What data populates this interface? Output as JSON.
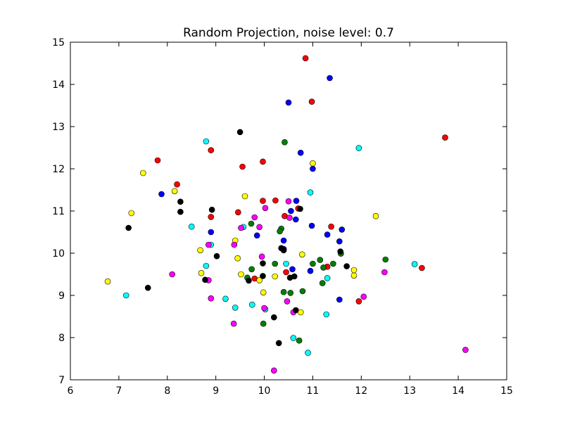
{
  "chart_data": {
    "type": "scatter",
    "title": "Random Projection, noise level: 0.7",
    "xlabel": "",
    "ylabel": "",
    "xlim": [
      6,
      15
    ],
    "ylim": [
      7,
      15
    ],
    "xticks": [
      "6",
      "7",
      "8",
      "9",
      "10",
      "11",
      "12",
      "13",
      "14",
      "15"
    ],
    "yticks": [
      "7",
      "8",
      "9",
      "10",
      "11",
      "12",
      "13",
      "14",
      "15"
    ],
    "grid": false,
    "legend": "none",
    "series": [
      {
        "color": "#0000ff",
        "points": [
          [
            11.35,
            14.15
          ],
          [
            10.5,
            13.57
          ],
          [
            10.75,
            12.38
          ],
          [
            11.0,
            12.0
          ],
          [
            7.88,
            11.4
          ],
          [
            10.66,
            11.24
          ],
          [
            10.65,
            10.8
          ],
          [
            10.98,
            10.65
          ],
          [
            11.6,
            10.56
          ],
          [
            8.9,
            10.5
          ],
          [
            11.3,
            10.44
          ],
          [
            9.85,
            10.42
          ],
          [
            10.4,
            10.3
          ],
          [
            11.55,
            10.28
          ],
          [
            10.4,
            10.1
          ],
          [
            10.58,
            9.62
          ],
          [
            10.95,
            9.58
          ],
          [
            11.55,
            8.9
          ],
          [
            10.55,
            11.0
          ]
        ]
      },
      {
        "color": "#ff0000",
        "points": [
          [
            10.85,
            14.62
          ],
          [
            10.98,
            13.59
          ],
          [
            13.73,
            12.74
          ],
          [
            8.9,
            12.44
          ],
          [
            7.8,
            12.2
          ],
          [
            9.97,
            12.17
          ],
          [
            9.55,
            12.05
          ],
          [
            8.2,
            11.63
          ],
          [
            9.97,
            11.24
          ],
          [
            10.23,
            11.25
          ],
          [
            10.7,
            11.06
          ],
          [
            9.46,
            10.97
          ],
          [
            8.9,
            10.86
          ],
          [
            10.42,
            10.88
          ],
          [
            11.38,
            10.63
          ],
          [
            13.25,
            9.65
          ],
          [
            11.3,
            9.68
          ],
          [
            10.45,
            9.55
          ],
          [
            9.8,
            9.4
          ],
          [
            11.95,
            8.86
          ]
        ]
      },
      {
        "color": "#00ffff",
        "points": [
          [
            8.8,
            12.65
          ],
          [
            11.95,
            12.49
          ],
          [
            10.95,
            11.44
          ],
          [
            8.5,
            10.63
          ],
          [
            9.57,
            10.62
          ],
          [
            8.9,
            10.2
          ],
          [
            10.45,
            9.75
          ],
          [
            13.1,
            9.74
          ],
          [
            8.8,
            9.7
          ],
          [
            11.3,
            9.41
          ],
          [
            7.15,
            9.0
          ],
          [
            9.2,
            8.92
          ],
          [
            9.75,
            8.78
          ],
          [
            9.4,
            8.71
          ],
          [
            10.02,
            8.67
          ],
          [
            11.28,
            8.55
          ],
          [
            10.6,
            7.99
          ],
          [
            10.9,
            7.64
          ]
        ]
      },
      {
        "color": "#ffff00",
        "points": [
          [
            7.5,
            11.9
          ],
          [
            11.0,
            12.13
          ],
          [
            8.15,
            11.47
          ],
          [
            9.6,
            11.35
          ],
          [
            7.26,
            10.95
          ],
          [
            12.3,
            10.88
          ],
          [
            9.4,
            10.3
          ],
          [
            8.68,
            10.07
          ],
          [
            10.78,
            9.97
          ],
          [
            9.45,
            9.88
          ],
          [
            11.85,
            9.6
          ],
          [
            8.7,
            9.53
          ],
          [
            9.52,
            9.5
          ],
          [
            11.85,
            9.47
          ],
          [
            10.22,
            9.45
          ],
          [
            9.9,
            9.36
          ],
          [
            6.77,
            9.33
          ],
          [
            9.98,
            9.07
          ],
          [
            10.75,
            8.6
          ]
        ]
      },
      {
        "color": "#ff00ff",
        "points": [
          [
            10.5,
            11.23
          ],
          [
            10.02,
            11.07
          ],
          [
            9.8,
            10.85
          ],
          [
            10.52,
            10.84
          ],
          [
            9.9,
            10.62
          ],
          [
            9.52,
            10.6
          ],
          [
            8.85,
            10.2
          ],
          [
            9.38,
            10.2
          ],
          [
            9.95,
            9.92
          ],
          [
            8.1,
            9.5
          ],
          [
            12.48,
            9.55
          ],
          [
            8.85,
            9.36
          ],
          [
            12.05,
            8.97
          ],
          [
            8.9,
            8.93
          ],
          [
            10.47,
            8.86
          ],
          [
            10.0,
            8.7
          ],
          [
            10.6,
            8.6
          ],
          [
            9.37,
            8.33
          ],
          [
            14.15,
            7.71
          ],
          [
            10.2,
            7.22
          ]
        ]
      },
      {
        "color": "#008000",
        "points": [
          [
            10.42,
            12.63
          ],
          [
            9.73,
            10.7
          ],
          [
            10.35,
            10.58
          ],
          [
            10.32,
            10.52
          ],
          [
            11.58,
            9.99
          ],
          [
            11.15,
            9.84
          ],
          [
            12.5,
            9.85
          ],
          [
            11.0,
            9.75
          ],
          [
            10.22,
            9.75
          ],
          [
            11.42,
            9.75
          ],
          [
            11.22,
            9.66
          ],
          [
            9.74,
            9.62
          ],
          [
            9.65,
            9.42
          ],
          [
            11.2,
            9.29
          ],
          [
            10.4,
            9.08
          ],
          [
            10.54,
            9.06
          ],
          [
            10.79,
            9.1
          ],
          [
            9.98,
            8.33
          ],
          [
            10.72,
            7.93
          ]
        ]
      },
      {
        "color": "#000000",
        "points": [
          [
            9.5,
            12.87
          ],
          [
            8.27,
            11.22
          ],
          [
            8.27,
            10.98
          ],
          [
            8.92,
            11.03
          ],
          [
            10.74,
            11.05
          ],
          [
            7.2,
            10.6
          ],
          [
            10.35,
            10.12
          ],
          [
            10.4,
            10.07
          ],
          [
            11.57,
            10.04
          ],
          [
            9.02,
            9.93
          ],
          [
            9.97,
            9.76
          ],
          [
            11.7,
            9.69
          ],
          [
            9.97,
            9.46
          ],
          [
            10.62,
            9.45
          ],
          [
            10.53,
            9.42
          ],
          [
            8.78,
            9.37
          ],
          [
            9.68,
            9.35
          ],
          [
            7.6,
            9.18
          ],
          [
            10.65,
            8.65
          ],
          [
            10.2,
            8.48
          ],
          [
            10.3,
            7.87
          ]
        ]
      }
    ]
  }
}
